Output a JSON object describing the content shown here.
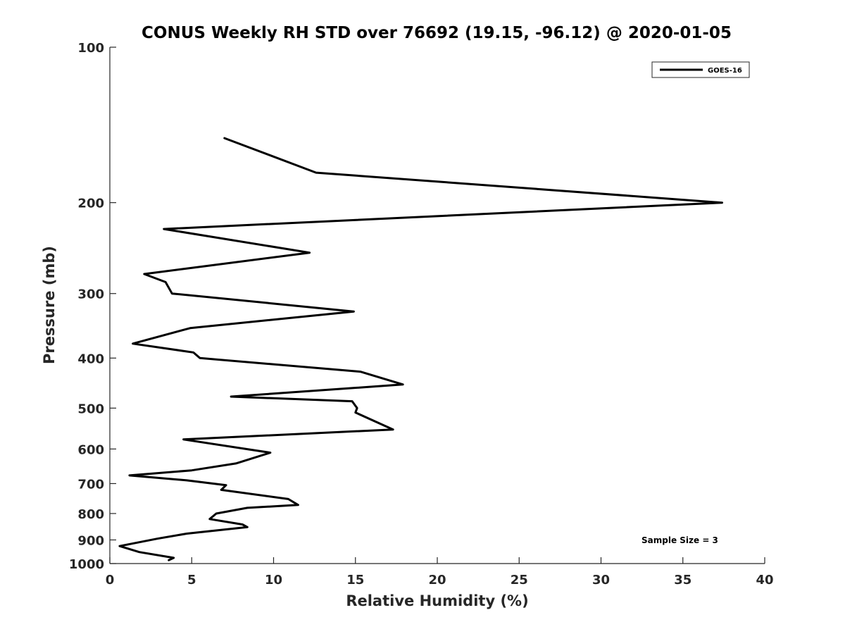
{
  "chart_data": {
    "type": "line",
    "title": "CONUS Weekly RH STD over 76692 (19.15, -96.12) @ 2020-01-05",
    "xlabel": "Relative Humidity (%)",
    "ylabel": "Pressure (mb)",
    "xlim": [
      0,
      40
    ],
    "ylim": [
      100,
      1000
    ],
    "y_scale": "log",
    "y_reversed": true,
    "xticks": [
      0,
      5,
      10,
      15,
      20,
      25,
      30,
      35,
      40
    ],
    "xtick_labels": [
      "0",
      "5",
      "10",
      "15",
      "20",
      "25",
      "30",
      "35",
      "40"
    ],
    "yticks": [
      100,
      200,
      300,
      400,
      500,
      600,
      700,
      800,
      900,
      1000
    ],
    "ytick_labels": [
      "100",
      "200",
      "300",
      "400",
      "500",
      "600",
      "700",
      "800",
      "900",
      "1000"
    ],
    "grid": false,
    "legend_position": "top-right",
    "annotation": "Sample Size = 3",
    "series": [
      {
        "name": "GOES-16",
        "color": "#000000",
        "points": [
          [
            7.0,
            150
          ],
          [
            12.6,
            175
          ],
          [
            37.4,
            200
          ],
          [
            3.3,
            225
          ],
          [
            12.2,
            250
          ],
          [
            2.1,
            275
          ],
          [
            3.4,
            285
          ],
          [
            3.8,
            300
          ],
          [
            14.9,
            325
          ],
          [
            4.9,
            350
          ],
          [
            1.4,
            375
          ],
          [
            5.1,
            390
          ],
          [
            5.5,
            400
          ],
          [
            15.3,
            425
          ],
          [
            17.9,
            450
          ],
          [
            7.4,
            475
          ],
          [
            14.8,
            485
          ],
          [
            15.1,
            500
          ],
          [
            15.0,
            510
          ],
          [
            17.3,
            550
          ],
          [
            4.5,
            575
          ],
          [
            9.8,
            610
          ],
          [
            7.7,
            640
          ],
          [
            5.0,
            660
          ],
          [
            1.2,
            675
          ],
          [
            4.7,
            690
          ],
          [
            7.1,
            705
          ],
          [
            6.8,
            720
          ],
          [
            10.9,
            750
          ],
          [
            11.5,
            770
          ],
          [
            8.4,
            780
          ],
          [
            6.5,
            800
          ],
          [
            6.1,
            820
          ],
          [
            8.1,
            840
          ],
          [
            8.4,
            850
          ],
          [
            4.7,
            875
          ],
          [
            2.9,
            895
          ],
          [
            0.6,
            925
          ],
          [
            1.8,
            950
          ],
          [
            3.9,
            975
          ],
          [
            3.6,
            985
          ]
        ]
      }
    ]
  }
}
